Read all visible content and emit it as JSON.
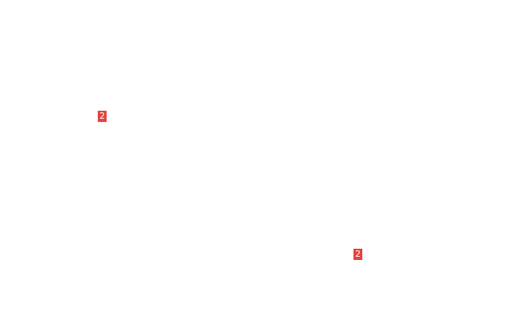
{
  "badges": [
    {
      "label": "2",
      "color": "#e8413b"
    },
    {
      "label": "2",
      "color": "#e8413b"
    }
  ]
}
